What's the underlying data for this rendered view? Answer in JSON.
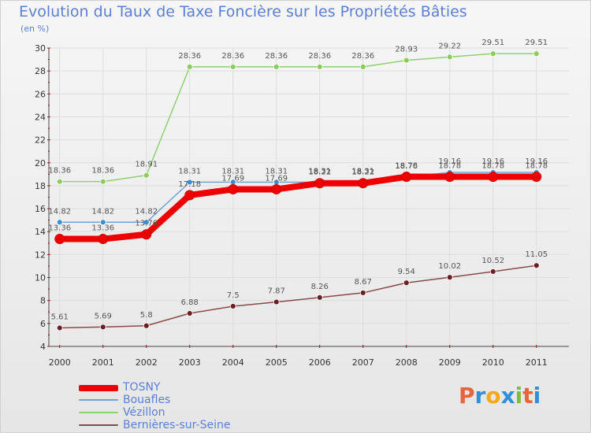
{
  "header": {
    "title": "Evolution du Taux de Taxe Foncière sur les Propriétés Bâties",
    "subtitle": "(en %)"
  },
  "brand": {
    "letters": [
      "P",
      "r",
      "o",
      "x",
      "i",
      "t",
      "i"
    ],
    "colors": [
      "#e8643c",
      "#2f8fd8",
      "#f3a81d",
      "#2f8fd8",
      "#7cbd3f",
      "#e8643c",
      "#2f8fd8"
    ]
  },
  "chart_data": {
    "type": "line",
    "title": "Evolution du Taux de Taxe Foncière sur les Propriétés Bâties",
    "ylabel": "(en %)",
    "xlabel": "",
    "ylim": [
      4,
      30
    ],
    "yticks": [
      4,
      6,
      8,
      10,
      12,
      14,
      16,
      18,
      20,
      22,
      24,
      26,
      28,
      30
    ],
    "x": [
      "2000",
      "2001",
      "2002",
      "2003",
      "2004",
      "2005",
      "2006",
      "2007",
      "2008",
      "2009",
      "2010",
      "2011"
    ],
    "grid": true,
    "legend": "bottom-left",
    "series": [
      {
        "name": "Vézillon",
        "color": "#8fd070",
        "marker": "#8ccc5c",
        "values": [
          18.36,
          18.36,
          18.91,
          28.36,
          28.36,
          28.36,
          28.36,
          28.36,
          28.93,
          29.22,
          29.51,
          29.51
        ],
        "labels": [
          "18.36",
          "18.36",
          "18.91",
          "28.36",
          "28.36",
          "28.36",
          "28.36",
          "28.36",
          "28.93",
          "29.22",
          "29.51",
          "29.51"
        ]
      },
      {
        "name": "Bouafles",
        "color": "#6fa4d2",
        "marker": "#3b8ed0",
        "values": [
          14.82,
          14.82,
          14.82,
          18.31,
          18.31,
          18.31,
          18.31,
          18.31,
          18.76,
          19.16,
          19.16,
          19.16
        ],
        "labels": [
          "14.82",
          "14.82",
          "14.82",
          "18.31",
          "18.31",
          "18.31",
          "18.31",
          "18.31",
          "18.76",
          "19.16",
          "19.16",
          "19.16"
        ]
      },
      {
        "name": "TOSNY",
        "color": "#ee0000",
        "marker": "#ee0000",
        "values": [
          13.36,
          13.36,
          13.76,
          17.18,
          17.69,
          17.69,
          18.22,
          18.22,
          18.78,
          18.78,
          18.78,
          18.78
        ],
        "labels": [
          "13.36",
          "13.36",
          "13.76",
          "17.18",
          "17.69",
          "17.69",
          "18.22",
          "18.22",
          "18.78",
          "18.78",
          "18.78",
          "18.78"
        ]
      },
      {
        "name": "Bernières-sur-Seine",
        "color": "#8a4a4a",
        "marker": "#6b1f24",
        "values": [
          5.61,
          5.69,
          5.8,
          6.88,
          7.5,
          7.87,
          8.26,
          8.67,
          9.54,
          10.02,
          10.52,
          11.05
        ],
        "labels": [
          "5.61",
          "5.69",
          "5.8",
          "6.88",
          "7.5",
          "7.87",
          "8.26",
          "8.67",
          "9.54",
          "10.02",
          "10.52",
          "11.05"
        ]
      }
    ],
    "legend_order": [
      "TOSNY",
      "Bouafles",
      "Vézillon",
      "Bernières-sur-Seine"
    ]
  }
}
